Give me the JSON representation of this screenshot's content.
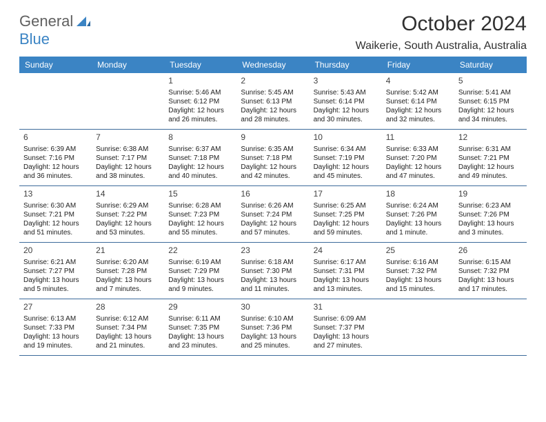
{
  "logo": {
    "part1": "General",
    "part2": "Blue"
  },
  "title": "October 2024",
  "location": "Waikerie, South Australia, Australia",
  "dayNames": [
    "Sunday",
    "Monday",
    "Tuesday",
    "Wednesday",
    "Thursday",
    "Friday",
    "Saturday"
  ],
  "colors": {
    "headerBg": "#3b84c4",
    "headerText": "#ffffff",
    "borderColor": "#3b6a9a",
    "logoGray": "#606060",
    "logoBlue": "#3b84c4"
  },
  "grid": {
    "columns": 7,
    "rows": 5,
    "leadingEmpty": 2
  },
  "days": [
    {
      "n": "1",
      "sr": "Sunrise: 5:46 AM",
      "ss": "Sunset: 6:12 PM",
      "dl1": "Daylight: 12 hours",
      "dl2": "and 26 minutes."
    },
    {
      "n": "2",
      "sr": "Sunrise: 5:45 AM",
      "ss": "Sunset: 6:13 PM",
      "dl1": "Daylight: 12 hours",
      "dl2": "and 28 minutes."
    },
    {
      "n": "3",
      "sr": "Sunrise: 5:43 AM",
      "ss": "Sunset: 6:14 PM",
      "dl1": "Daylight: 12 hours",
      "dl2": "and 30 minutes."
    },
    {
      "n": "4",
      "sr": "Sunrise: 5:42 AM",
      "ss": "Sunset: 6:14 PM",
      "dl1": "Daylight: 12 hours",
      "dl2": "and 32 minutes."
    },
    {
      "n": "5",
      "sr": "Sunrise: 5:41 AM",
      "ss": "Sunset: 6:15 PM",
      "dl1": "Daylight: 12 hours",
      "dl2": "and 34 minutes."
    },
    {
      "n": "6",
      "sr": "Sunrise: 6:39 AM",
      "ss": "Sunset: 7:16 PM",
      "dl1": "Daylight: 12 hours",
      "dl2": "and 36 minutes."
    },
    {
      "n": "7",
      "sr": "Sunrise: 6:38 AM",
      "ss": "Sunset: 7:17 PM",
      "dl1": "Daylight: 12 hours",
      "dl2": "and 38 minutes."
    },
    {
      "n": "8",
      "sr": "Sunrise: 6:37 AM",
      "ss": "Sunset: 7:18 PM",
      "dl1": "Daylight: 12 hours",
      "dl2": "and 40 minutes."
    },
    {
      "n": "9",
      "sr": "Sunrise: 6:35 AM",
      "ss": "Sunset: 7:18 PM",
      "dl1": "Daylight: 12 hours",
      "dl2": "and 42 minutes."
    },
    {
      "n": "10",
      "sr": "Sunrise: 6:34 AM",
      "ss": "Sunset: 7:19 PM",
      "dl1": "Daylight: 12 hours",
      "dl2": "and 45 minutes."
    },
    {
      "n": "11",
      "sr": "Sunrise: 6:33 AM",
      "ss": "Sunset: 7:20 PM",
      "dl1": "Daylight: 12 hours",
      "dl2": "and 47 minutes."
    },
    {
      "n": "12",
      "sr": "Sunrise: 6:31 AM",
      "ss": "Sunset: 7:21 PM",
      "dl1": "Daylight: 12 hours",
      "dl2": "and 49 minutes."
    },
    {
      "n": "13",
      "sr": "Sunrise: 6:30 AM",
      "ss": "Sunset: 7:21 PM",
      "dl1": "Daylight: 12 hours",
      "dl2": "and 51 minutes."
    },
    {
      "n": "14",
      "sr": "Sunrise: 6:29 AM",
      "ss": "Sunset: 7:22 PM",
      "dl1": "Daylight: 12 hours",
      "dl2": "and 53 minutes."
    },
    {
      "n": "15",
      "sr": "Sunrise: 6:28 AM",
      "ss": "Sunset: 7:23 PM",
      "dl1": "Daylight: 12 hours",
      "dl2": "and 55 minutes."
    },
    {
      "n": "16",
      "sr": "Sunrise: 6:26 AM",
      "ss": "Sunset: 7:24 PM",
      "dl1": "Daylight: 12 hours",
      "dl2": "and 57 minutes."
    },
    {
      "n": "17",
      "sr": "Sunrise: 6:25 AM",
      "ss": "Sunset: 7:25 PM",
      "dl1": "Daylight: 12 hours",
      "dl2": "and 59 minutes."
    },
    {
      "n": "18",
      "sr": "Sunrise: 6:24 AM",
      "ss": "Sunset: 7:26 PM",
      "dl1": "Daylight: 13 hours",
      "dl2": "and 1 minute."
    },
    {
      "n": "19",
      "sr": "Sunrise: 6:23 AM",
      "ss": "Sunset: 7:26 PM",
      "dl1": "Daylight: 13 hours",
      "dl2": "and 3 minutes."
    },
    {
      "n": "20",
      "sr": "Sunrise: 6:21 AM",
      "ss": "Sunset: 7:27 PM",
      "dl1": "Daylight: 13 hours",
      "dl2": "and 5 minutes."
    },
    {
      "n": "21",
      "sr": "Sunrise: 6:20 AM",
      "ss": "Sunset: 7:28 PM",
      "dl1": "Daylight: 13 hours",
      "dl2": "and 7 minutes."
    },
    {
      "n": "22",
      "sr": "Sunrise: 6:19 AM",
      "ss": "Sunset: 7:29 PM",
      "dl1": "Daylight: 13 hours",
      "dl2": "and 9 minutes."
    },
    {
      "n": "23",
      "sr": "Sunrise: 6:18 AM",
      "ss": "Sunset: 7:30 PM",
      "dl1": "Daylight: 13 hours",
      "dl2": "and 11 minutes."
    },
    {
      "n": "24",
      "sr": "Sunrise: 6:17 AM",
      "ss": "Sunset: 7:31 PM",
      "dl1": "Daylight: 13 hours",
      "dl2": "and 13 minutes."
    },
    {
      "n": "25",
      "sr": "Sunrise: 6:16 AM",
      "ss": "Sunset: 7:32 PM",
      "dl1": "Daylight: 13 hours",
      "dl2": "and 15 minutes."
    },
    {
      "n": "26",
      "sr": "Sunrise: 6:15 AM",
      "ss": "Sunset: 7:32 PM",
      "dl1": "Daylight: 13 hours",
      "dl2": "and 17 minutes."
    },
    {
      "n": "27",
      "sr": "Sunrise: 6:13 AM",
      "ss": "Sunset: 7:33 PM",
      "dl1": "Daylight: 13 hours",
      "dl2": "and 19 minutes."
    },
    {
      "n": "28",
      "sr": "Sunrise: 6:12 AM",
      "ss": "Sunset: 7:34 PM",
      "dl1": "Daylight: 13 hours",
      "dl2": "and 21 minutes."
    },
    {
      "n": "29",
      "sr": "Sunrise: 6:11 AM",
      "ss": "Sunset: 7:35 PM",
      "dl1": "Daylight: 13 hours",
      "dl2": "and 23 minutes."
    },
    {
      "n": "30",
      "sr": "Sunrise: 6:10 AM",
      "ss": "Sunset: 7:36 PM",
      "dl1": "Daylight: 13 hours",
      "dl2": "and 25 minutes."
    },
    {
      "n": "31",
      "sr": "Sunrise: 6:09 AM",
      "ss": "Sunset: 7:37 PM",
      "dl1": "Daylight: 13 hours",
      "dl2": "and 27 minutes."
    }
  ]
}
